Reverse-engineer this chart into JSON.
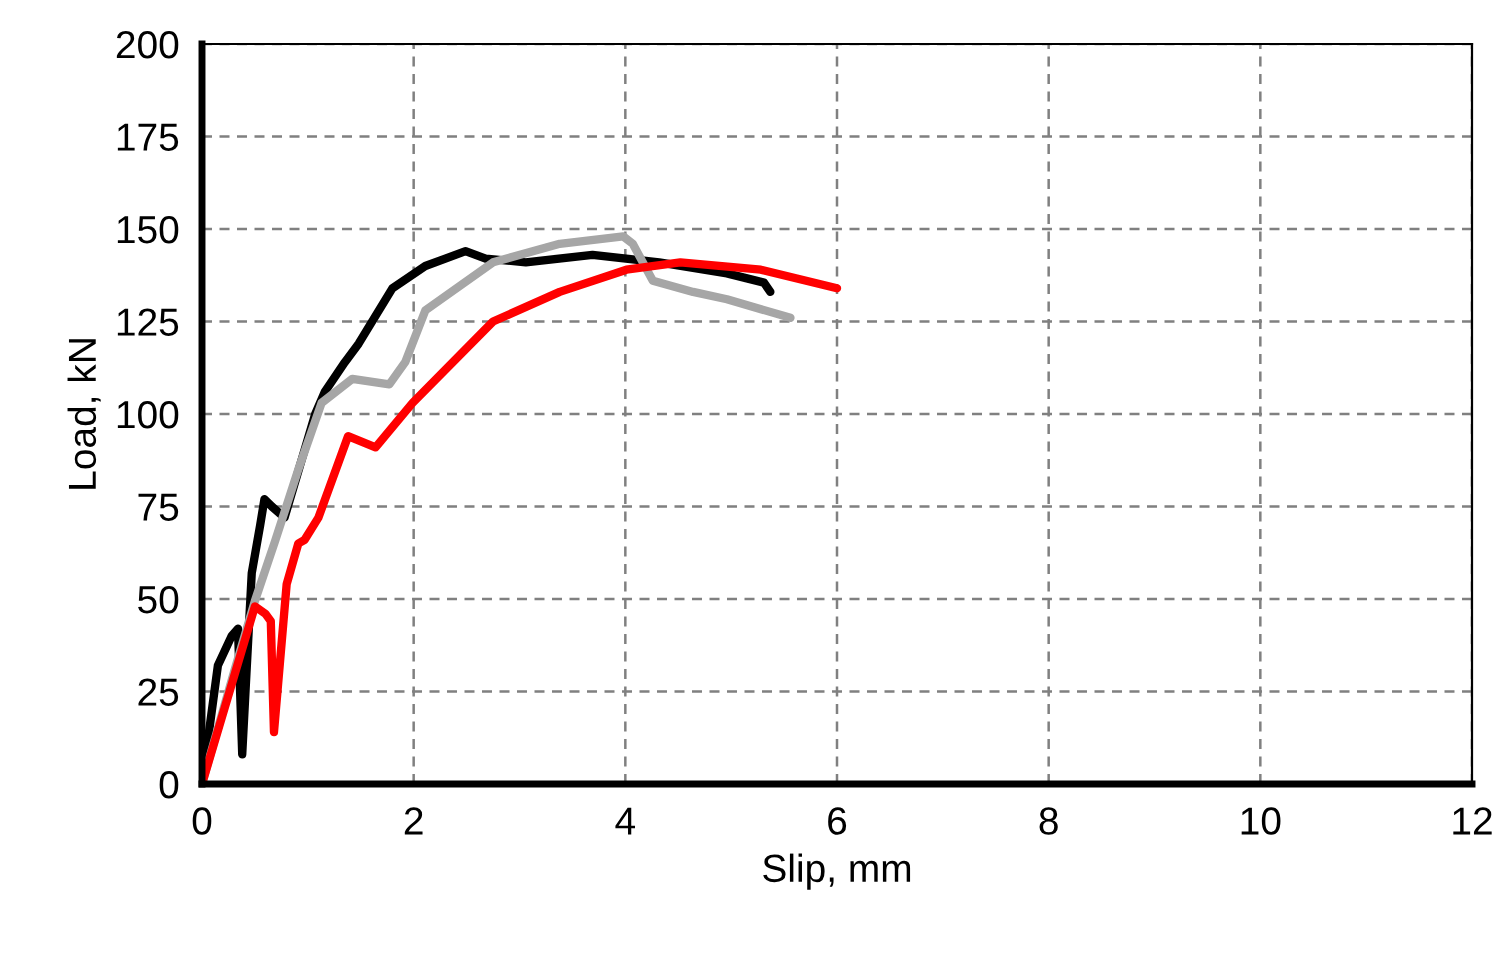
{
  "chart_data": {
    "type": "line",
    "xlabel": "Slip, mm",
    "ylabel": "Load, kN",
    "xlim": [
      0,
      12
    ],
    "xticks": [
      0,
      2,
      4,
      6,
      8,
      10,
      12
    ],
    "ylim": [
      0,
      200
    ],
    "yticks": [
      0,
      25,
      50,
      75,
      100,
      125,
      150,
      175,
      200
    ],
    "grid": true,
    "marker": "none",
    "line_style": "solid",
    "series": [
      {
        "color": "#000000",
        "x": [
          0,
          0.15,
          0.28,
          0.34,
          0.38,
          0.42,
          0.47,
          0.55,
          0.59,
          0.66,
          0.78,
          1.07,
          1.16,
          1.35,
          1.48,
          1.8,
          2.11,
          2.49,
          2.68,
          3.06,
          3.69,
          4.32,
          4.96,
          5.31,
          5.37
        ],
        "values": [
          0,
          32,
          40,
          42,
          8,
          30,
          57,
          70,
          77,
          75,
          72,
          100,
          106,
          114,
          119,
          134,
          140,
          144,
          142,
          141,
          143,
          141,
          138,
          135.5,
          133
        ]
      },
      {
        "color": "#a6a6a6",
        "x": [
          0,
          0.3,
          0.5,
          0.69,
          0.91,
          1.13,
          1.42,
          1.77,
          1.92,
          2.11,
          2.75,
          3.38,
          3.98,
          4.07,
          4.26,
          4.64,
          4.96,
          5.56
        ],
        "values": [
          0,
          30,
          49.5,
          65.6,
          85,
          103,
          109.5,
          108,
          114,
          128,
          141,
          146,
          148,
          146,
          136,
          133,
          131,
          126
        ]
      },
      {
        "color": "#ff0000",
        "x": [
          0,
          0.5,
          0.6,
          0.65,
          0.68,
          0.8,
          0.91,
          0.97,
          1.1,
          1.38,
          1.64,
          1.99,
          2.75,
          3.38,
          4.01,
          4.52,
          5.28,
          6.0
        ],
        "values": [
          0,
          48,
          46,
          44,
          14,
          54,
          65,
          66,
          72,
          94,
          91,
          103,
          125,
          133,
          139,
          141,
          139,
          134
        ]
      }
    ]
  }
}
